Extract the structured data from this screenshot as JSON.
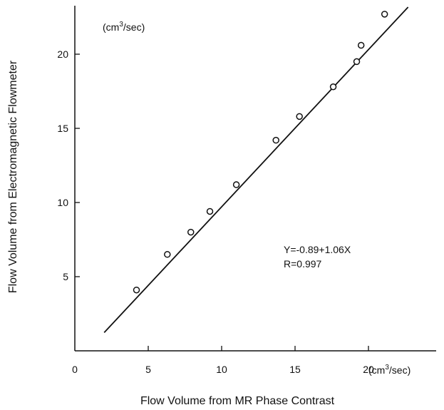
{
  "chart_data": {
    "type": "scatter",
    "title": "",
    "xlabel": "Flow Volume from MR Phase Contrast",
    "ylabel": "Flow Volume from Electromagnetic Flowmeter",
    "x_unit": {
      "pre": "(cm",
      "sup": "3",
      "post": "/sec)"
    },
    "y_unit": {
      "pre": "(cm",
      "sup": "3",
      "post": "/sec)"
    },
    "xlim": [
      0,
      25
    ],
    "ylim": [
      0,
      24
    ],
    "x_ticks": [
      0,
      5,
      10,
      15,
      20
    ],
    "x_tick_labels": [
      "0",
      "5",
      "10",
      "15",
      "20"
    ],
    "y_ticks": [
      5,
      10,
      15,
      20
    ],
    "y_tick_labels": [
      "5",
      "10",
      "15",
      "20"
    ],
    "grid": false,
    "points": [
      {
        "x": 4.2,
        "y": 4.1
      },
      {
        "x": 6.3,
        "y": 6.5
      },
      {
        "x": 7.9,
        "y": 8.0
      },
      {
        "x": 9.2,
        "y": 9.4
      },
      {
        "x": 11.0,
        "y": 11.2
      },
      {
        "x": 13.7,
        "y": 14.2
      },
      {
        "x": 15.3,
        "y": 15.8
      },
      {
        "x": 17.6,
        "y": 17.8
      },
      {
        "x": 19.2,
        "y": 19.5
      },
      {
        "x": 19.5,
        "y": 20.6
      },
      {
        "x": 21.1,
        "y": 22.7
      }
    ],
    "fit_line": {
      "intercept": -0.89,
      "slope": 1.06,
      "x_range": [
        2.0,
        22.7
      ]
    },
    "annotations": [
      "Y=-0.89+1.06X",
      "R=0.997"
    ]
  }
}
